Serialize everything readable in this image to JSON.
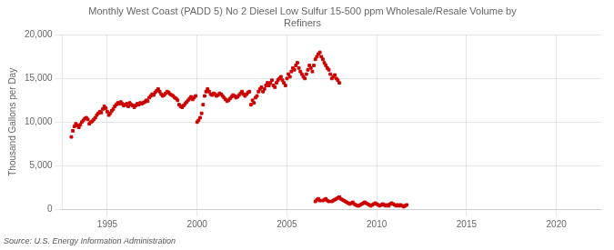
{
  "chart_data": {
    "type": "scatter",
    "title": "Monthly West Coast (PADD 5) No 2 Diesel Low Sulfur 15-500 ppm Wholesale/Resale Volume by\nRefiners",
    "ylabel": "Thousand Gallons per Day",
    "annotations": [
      "Source: U.S. Energy Information Administration"
    ],
    "xlim": [
      1992.5,
      2022.5
    ],
    "xticks": [
      1995,
      2000,
      2005,
      2010,
      2015,
      2020
    ],
    "ylim": [
      0,
      20000
    ],
    "yticks": [
      0,
      {
        "value": 5000,
        "label": "5,000"
      },
      {
        "value": 10000,
        "label": "10,000"
      },
      {
        "value": 15000,
        "label": "15,000"
      },
      {
        "value": 20000,
        "label": "20,000"
      }
    ],
    "grid": true,
    "series": [
      {
        "color": "#cc0000",
        "marker": "square",
        "x": [
          1993.0,
          1993.083,
          1993.167,
          1993.25,
          1993.333,
          1993.417,
          1993.5,
          1993.583,
          1993.667,
          1993.75,
          1993.833,
          1993.917,
          1994.0,
          1994.083,
          1994.167,
          1994.25,
          1994.333,
          1994.417,
          1994.5,
          1994.583,
          1994.667,
          1994.75,
          1994.833,
          1994.917,
          1995.0,
          1995.083,
          1995.167,
          1995.25,
          1995.333,
          1995.417,
          1995.5,
          1995.583,
          1995.667,
          1995.75,
          1995.833,
          1995.917,
          1996.0,
          1996.083,
          1996.167,
          1996.25,
          1996.333,
          1996.417,
          1996.5,
          1996.583,
          1996.667,
          1996.75,
          1996.833,
          1996.917,
          1997.0,
          1997.083,
          1997.167,
          1997.25,
          1997.333,
          1997.417,
          1997.5,
          1997.583,
          1997.667,
          1997.75,
          1997.833,
          1997.917,
          1998.0,
          1998.083,
          1998.167,
          1998.25,
          1998.333,
          1998.417,
          1998.5,
          1998.583,
          1998.667,
          1998.75,
          1998.833,
          1998.917,
          1999.0,
          1999.083,
          1999.167,
          1999.25,
          1999.333,
          1999.417,
          1999.5,
          1999.583,
          1999.667,
          1999.75,
          1999.833,
          1999.917,
          2000.0,
          2000.083,
          2000.167,
          2000.25,
          2000.333,
          2000.417,
          2000.5,
          2000.583,
          2000.667,
          2000.75,
          2000.833,
          2000.917,
          2001.0,
          2001.083,
          2001.167,
          2001.25,
          2001.333,
          2001.417,
          2001.5,
          2001.583,
          2001.667,
          2001.75,
          2001.833,
          2001.917,
          2002.0,
          2002.083,
          2002.167,
          2002.25,
          2002.333,
          2002.417,
          2002.5,
          2002.583,
          2002.667,
          2002.75,
          2002.833,
          2002.917,
          2003.0,
          2003.083,
          2003.167,
          2003.25,
          2003.333,
          2003.417,
          2003.5,
          2003.583,
          2003.667,
          2003.75,
          2003.833,
          2003.917,
          2004.0,
          2004.083,
          2004.167,
          2004.25,
          2004.333,
          2004.417,
          2004.5,
          2004.583,
          2004.667,
          2004.75,
          2004.833,
          2004.917,
          2005.0,
          2005.083,
          2005.167,
          2005.25,
          2005.333,
          2005.417,
          2005.5,
          2005.583,
          2005.667,
          2005.75,
          2005.833,
          2005.917,
          2006.0,
          2006.083,
          2006.167,
          2006.25,
          2006.333,
          2006.417,
          2006.5,
          2006.583,
          2006.667,
          2006.75,
          2006.833,
          2006.917,
          2007.0,
          2007.083,
          2007.167,
          2007.25,
          2007.333,
          2007.417,
          2007.5,
          2007.583,
          2007.667,
          2007.75,
          2007.833,
          2007.917
        ],
        "values": [
          8300,
          9000,
          9500,
          9800,
          9600,
          9400,
          9700,
          10000,
          10200,
          10400,
          10500,
          10300,
          9800,
          10000,
          10100,
          10300,
          10500,
          10800,
          11000,
          11200,
          11100,
          11500,
          11800,
          11600,
          11200,
          10800,
          11000,
          11300,
          11500,
          11800,
          12000,
          12200,
          12100,
          12300,
          12100,
          11900,
          12000,
          12100,
          11800,
          12200,
          12000,
          11900,
          11700,
          11900,
          12100,
          12000,
          12200,
          12100,
          12200,
          12300,
          12500,
          12400,
          12800,
          13000,
          13200,
          13100,
          13400,
          13600,
          13800,
          13500,
          13200,
          13000,
          13100,
          13300,
          13500,
          13400,
          13200,
          13100,
          13000,
          12800,
          12700,
          12500,
          12000,
          11800,
          11700,
          11900,
          12100,
          12300,
          12500,
          12700,
          12900,
          12600,
          12800,
          13000,
          10000,
          10200,
          10500,
          11000,
          12000,
          13000,
          13500,
          13800,
          13500,
          13200,
          13100,
          13300,
          13200,
          13000,
          13100,
          13300,
          13200,
          13000,
          12800,
          12600,
          12400,
          12500,
          12700,
          12900,
          13100,
          13000,
          12800,
          12900,
          13100,
          13300,
          13500,
          13200,
          13000,
          13200,
          13400,
          13500,
          12000,
          12500,
          12200,
          12800,
          13000,
          13500,
          13800,
          14000,
          13500,
          13800,
          14200,
          14500,
          14200,
          14500,
          14800,
          14200,
          14000,
          14500,
          14800,
          15000,
          15200,
          14800,
          14500,
          14200,
          15000,
          15500,
          15200,
          15800,
          16200,
          16000,
          16500,
          16800,
          16200,
          15800,
          15500,
          15200,
          15000,
          15500,
          16000,
          16500,
          16200,
          15800,
          16500,
          17200,
          17500,
          17800,
          18000,
          17500,
          17200,
          16800,
          16500,
          16200,
          16000,
          15500,
          15000,
          15200,
          15400,
          15000,
          14800,
          14500
        ]
      },
      {
        "color": "#cc0000",
        "marker": "square",
        "x": [
          2006.583,
          2006.667,
          2006.75,
          2006.833,
          2007.0,
          2007.083,
          2007.167,
          2007.25,
          2007.333,
          2007.5,
          2007.583,
          2007.667,
          2007.75,
          2007.833,
          2007.917,
          2008.0,
          2008.083,
          2008.167,
          2008.25,
          2008.333,
          2008.417,
          2008.5,
          2008.583,
          2008.667,
          2008.75,
          2008.833,
          2008.917,
          2009.0,
          2009.083,
          2009.167,
          2009.25,
          2009.333,
          2009.417,
          2009.5,
          2009.583,
          2009.667,
          2009.75,
          2009.833,
          2009.917,
          2010.0,
          2010.083,
          2010.167,
          2010.25,
          2010.333,
          2010.417,
          2010.5,
          2010.583,
          2010.667,
          2010.75,
          2010.833,
          2010.917,
          2011.0,
          2011.083,
          2011.167,
          2011.25,
          2011.333,
          2011.417,
          2011.5,
          2011.583,
          2011.667
        ],
        "values": [
          900,
          1100,
          1200,
          1000,
          1000,
          1100,
          1200,
          1000,
          900,
          900,
          1000,
          1100,
          1200,
          1300,
          1400,
          1200,
          1100,
          1000,
          900,
          800,
          700,
          600,
          700,
          800,
          600,
          500,
          400,
          400,
          500,
          600,
          700,
          800,
          700,
          600,
          500,
          400,
          500,
          600,
          700,
          600,
          500,
          400,
          500,
          600,
          500,
          400,
          500,
          400,
          600,
          700,
          600,
          500,
          400,
          500,
          400,
          500,
          400,
          300,
          400,
          500
        ]
      }
    ]
  }
}
